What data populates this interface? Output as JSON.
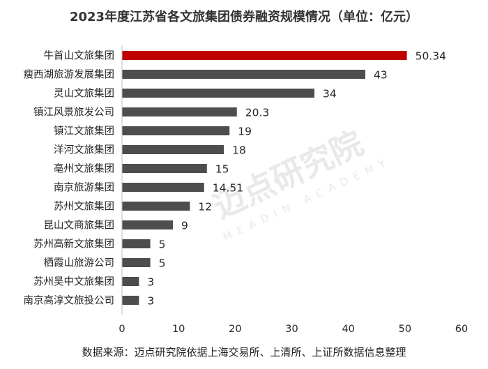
{
  "title": "2023年度江苏省各文旅集团债券融资规模情况（单位：亿元）",
  "source": "数据来源：迈点研究院依据上海交易所、上清所、上证所数据信息整理",
  "watermark": {
    "cn": "迈点研究院",
    "en": "MEADIN ACADEMY"
  },
  "colors": {
    "highlight": "#c00000",
    "bar": "#4d4d4d",
    "axis": "#bfbfbf",
    "text": "#262626"
  },
  "chart_data": {
    "type": "bar",
    "orientation": "horizontal",
    "categories": [
      "牛首山文旅集团",
      "瘦西湖旅游发展集团",
      "灵山文旅集团",
      "镇江风景旅发公司",
      "镇江文旅集团",
      "洋河文旅集团",
      "亳州文旅集团",
      "南京旅游集团",
      "苏州文旅集团",
      "昆山文商旅集团",
      "苏州高新文旅集团",
      "栖霞山旅游公司",
      "苏州吴中文旅集团",
      "南京高淳文旅投公司"
    ],
    "values": [
      50.34,
      43,
      34,
      20.3,
      19,
      18,
      15,
      14.51,
      12,
      9,
      5,
      5,
      3,
      3
    ],
    "value_labels": [
      "50.34",
      "43",
      "34",
      "20.3",
      "19",
      "18",
      "15",
      "14.51",
      "12",
      "9",
      "5",
      "5",
      "3",
      "3"
    ],
    "xlim": [
      0,
      60
    ],
    "xticks": [
      0,
      10,
      20,
      30,
      40,
      50,
      60
    ],
    "grid": false,
    "highlight_index": 0
  }
}
